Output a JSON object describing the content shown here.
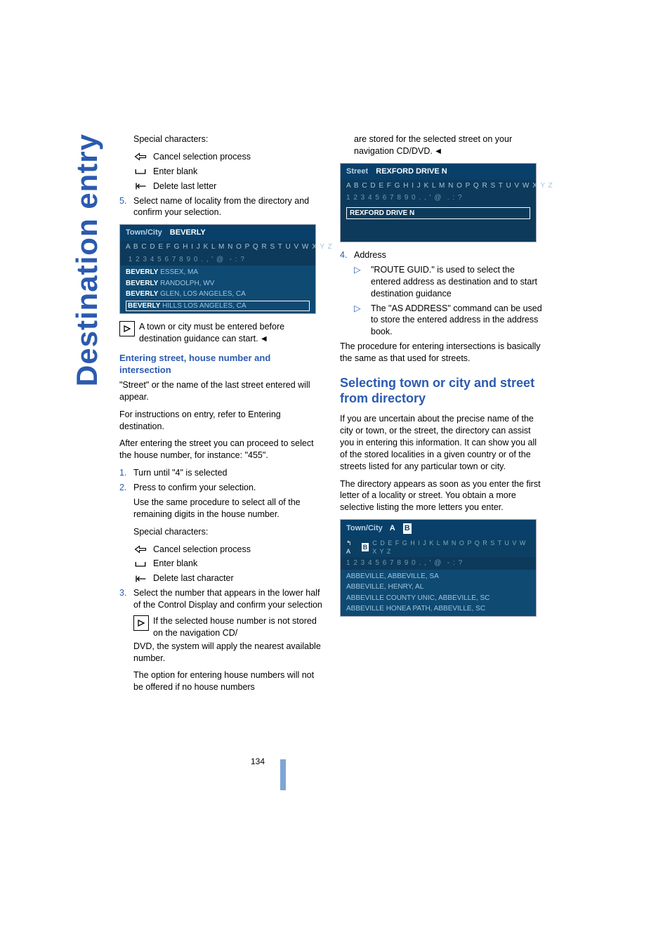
{
  "page_number": "134",
  "side_tab": "Destination entry",
  "colors": {
    "accent": "#2b5ab0",
    "screenshot_bg": "#0d3a5b",
    "screenshot_header_bg": "#08406a",
    "screenshot_text_dim": "#9fc6de"
  },
  "left": {
    "special_chars_label": "Special characters:",
    "cancel_label": "Cancel selection process",
    "blank_label": "Enter blank",
    "delete_letter_label": "Delete last letter",
    "step5": "Select name of locality from the directory and confirm your selection.",
    "screenshot1": {
      "title_label": "Town/City",
      "title_value": "BEVERLY",
      "alpha_row": "A B C D E F G H I J K L M N O P Q R S T U V W X Y Z",
      "num_row": " 1 2 3 4 5 6 7 8 9 0 . , ' @  - : ?",
      "items": [
        {
          "bold": "BEVERLY",
          "rest": " ESSEX, MA"
        },
        {
          "bold": "BEVERLY",
          "rest": " RANDOLPH, WV"
        },
        {
          "bold": "BEVERLY",
          "rest": " GLEN, LOS ANGELES, CA"
        },
        {
          "bold": "BEVERLY",
          "rest": " HILLS LOS ANGELES, CA",
          "selected": true
        }
      ]
    },
    "tip1": "A town or city must be entered before destination guidance can start.",
    "subhead1": "Entering street, house number and intersection",
    "p_street": "\"Street\" or the name of the last street entered will appear.",
    "p_instr": "For instructions on entry, refer to Entering destination.",
    "p_after": "After entering the street you can proceed to select the house number, for instance: \"455\".",
    "step1": "Turn until \"4\" is selected",
    "step2": "Press to confirm your selection.",
    "step2b": "Use the same procedure to select all of the remaining digits in the house number.",
    "special_chars_label2": "Special characters:",
    "cancel_label2": "Cancel selection process",
    "blank_label2": "Enter blank",
    "delete_char_label": "Delete last character",
    "step3": "Select the number that appears in the lower half of the Control Display and confirm your selection",
    "tip2a": "If the selected house number is not stored on the navigation CD/",
    "tip2b": "DVD, the system will apply the nearest available number.",
    "tip2c": "The option for entering house numbers will not be offered if no house numbers"
  },
  "right": {
    "cont": "are stored for the selected street on your navigation CD/DVD.",
    "screenshot2": {
      "title_label": "Street",
      "title_value": "REXFORD DRIVE N",
      "alpha_row": "A B C D E F G H I J K L M N O P Q R S T U V W X Y Z",
      "num_row": "1 2 3 4 5 6 7 8 9 0 . , ' @  . : ?",
      "entry": "REXFORD DRIVE N"
    },
    "step4": "Address",
    "b1": "\"ROUTE GUID.\" is used to select the entered address as destination and to start destination guidance",
    "b2": "The \"AS ADDRESS\" command can be used to store the entered address in the address book.",
    "p_inter": "The procedure for entering intersections is basically the same as that used for streets.",
    "big_head": "Selecting town or city and street from directory",
    "p_dir1": "If you are uncertain about the precise name of the city or town, or the street, the directory can assist you in entering this information. It can show you all of the stored localities in a given country or of the streets listed for any particular town or city.",
    "p_dir2": "The directory appears as soon as you enter the first letter of a locality or street. You obtain a more selective listing the more letters you enter.",
    "screenshot3": {
      "title_label": "Town/City",
      "letters_prefix": "A",
      "highlight": "B",
      "alpha_rest": "C D E F G H I J K L M N O P Q R S T U V W X Y Z",
      "num_row": "1 2 3 4 5 6 7 8 9 0 . , ' @  - : ?",
      "items": [
        "ABBEVILLE, ABBEVILLE, SA",
        "ABBEVILLE, HENRY, AL",
        "ABBEVILLE COUNTY UNIC, ABBEVILLE, SC",
        "ABBEVILLE HONEA PATH, ABBEVILLE, SC"
      ]
    }
  }
}
